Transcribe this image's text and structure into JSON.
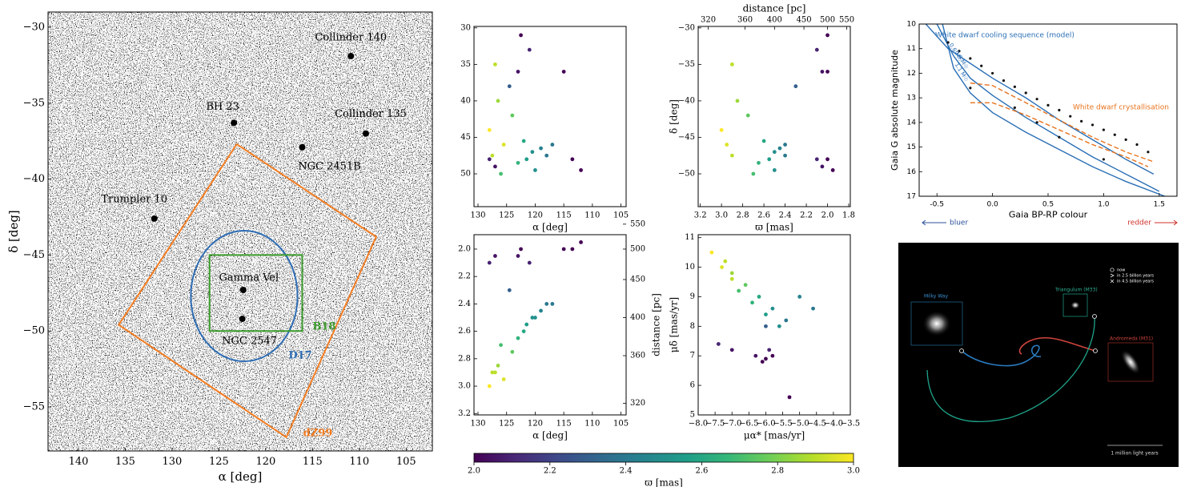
{
  "chart_data": [
    {
      "type": "sky-map",
      "xlabel": "α [deg]",
      "ylabel": "δ [deg]",
      "xlim": [
        143.25,
        102.2
      ],
      "ylim": [
        -57.9,
        -29
      ],
      "xticks": [
        140,
        135,
        130,
        125,
        120,
        115,
        110,
        105
      ],
      "yticks": [
        {
          "value": -30,
          "label": "−30"
        },
        {
          "value": -35,
          "label": "−35"
        },
        {
          "value": -40,
          "label": "−40"
        },
        {
          "value": -45,
          "label": "−45"
        },
        {
          "value": -50,
          "label": "−50"
        },
        {
          "value": -55,
          "label": "−55"
        }
      ],
      "labels": [
        "Collinder 140",
        "BH 23",
        "Collinder 135",
        "NGC 2451B",
        "Trumpler 10",
        "Gamma Vel",
        "NGC 2547"
      ],
      "x": [
        110.9,
        123.4,
        109.3,
        116.1,
        131.9,
        122.4,
        122.5
      ],
      "y": [
        -31.9,
        -36.3,
        -37.0,
        -37.9,
        -42.6,
        -47.3,
        -49.2
      ],
      "color": "#000000",
      "regions": [
        {
          "name": "dZ99",
          "color": "#f47c20",
          "x": [
            123.1,
            108.2,
            117.8,
            135.7
          ],
          "y": [
            -37.7,
            -43.8,
            -57.0,
            -49.6
          ]
        },
        {
          "name": "D17",
          "color": "#2e6db4",
          "center": [
            122.3,
            -47.7
          ],
          "radius": [
            5.7,
            4.3
          ]
        },
        {
          "name": "B18",
          "color": "#3a9a2a",
          "x": [
            126.0,
            116.1,
            116.1,
            126.0
          ],
          "y": [
            -45.0,
            -45.0,
            -50.0,
            -50.0
          ]
        }
      ]
    },
    {
      "type": "scatter",
      "xlabel": "α [deg]",
      "xlim": [
        130.7,
        104.1
      ],
      "ylim": [
        -54.5,
        -29.8
      ],
      "xticks": [
        130,
        125,
        120,
        115,
        110,
        105
      ],
      "yticks": [
        {
          "value": -30,
          "label": "30"
        },
        {
          "value": -35,
          "label": "35"
        },
        {
          "value": -40,
          "label": "40"
        },
        {
          "value": -45,
          "label": "45"
        },
        {
          "value": -50,
          "label": "50"
        }
      ],
      "x": [
        127,
        126.5,
        128,
        125.5,
        127.5,
        124,
        122,
        120.5,
        119,
        121.5,
        118,
        123,
        117,
        120,
        126,
        124.5,
        121,
        123,
        122.5,
        128,
        127,
        113.5,
        112,
        115
      ],
      "y": [
        -35,
        -40,
        -44,
        -46,
        -47.5,
        -42,
        -45.5,
        -47,
        -46.5,
        -48,
        -47.5,
        -48.5,
        -46,
        -49.5,
        -50,
        -38,
        -33,
        -36,
        -31,
        -48,
        -49,
        -48,
        -49.5,
        -36
      ],
      "c": [
        2.9,
        2.85,
        3,
        2.95,
        2.9,
        2.75,
        2.6,
        2.5,
        2.45,
        2.55,
        2.4,
        2.65,
        2.4,
        2.5,
        2.7,
        2.3,
        2.1,
        2.05,
        2,
        2.1,
        2.05,
        2,
        1.95,
        2
      ]
    },
    {
      "type": "scatter",
      "xlabel": "ϖ [mas]",
      "ylabel": "δ [deg]",
      "x2label": "distance [pc]",
      "xlim": [
        3.22,
        1.785
      ],
      "ylim": [
        -54.5,
        -29.8
      ],
      "xticks": [
        3.2,
        {
          "value": 3,
          "label": "3.0"
        },
        2.8,
        2.6,
        2.4,
        2.2,
        {
          "value": 2,
          "label": "2.0"
        },
        1.8
      ],
      "x2ticks": [
        320,
        360,
        400,
        450,
        500,
        550
      ],
      "yticks": [
        {
          "value": -30,
          "label": "−30"
        },
        {
          "value": -35,
          "label": "−35"
        },
        {
          "value": -40,
          "label": "−40"
        },
        {
          "value": -45,
          "label": "−45"
        },
        {
          "value": -50,
          "label": "−50"
        }
      ],
      "x": [
        2.9,
        2.85,
        3,
        2.95,
        2.9,
        2.75,
        2.6,
        2.5,
        2.45,
        2.55,
        2.4,
        2.65,
        2.4,
        2.5,
        2.7,
        2.3,
        2.1,
        2.05,
        2,
        2.1,
        2.05,
        2,
        1.95,
        2
      ],
      "y": [
        -35,
        -40,
        -44,
        -46,
        -47.5,
        -42,
        -45.5,
        -47,
        -46.5,
        -48,
        -47.5,
        -48.5,
        -46,
        -49.5,
        -50,
        -38,
        -33,
        -36,
        -31,
        -48,
        -49,
        -48,
        -49.5,
        -36
      ],
      "c": [
        2.9,
        2.85,
        3,
        2.95,
        2.9,
        2.75,
        2.6,
        2.5,
        2.45,
        2.55,
        2.4,
        2.65,
        2.4,
        2.5,
        2.7,
        2.3,
        2.1,
        2.05,
        2,
        2.1,
        2.05,
        2,
        1.95,
        2
      ]
    },
    {
      "type": "scatter",
      "xlabel": "α [deg]",
      "y2label": "distance [pc]",
      "xlim": [
        130.7,
        104.1
      ],
      "ylim": [
        3.21,
        1.895
      ],
      "xticks": [
        130,
        125,
        120,
        115,
        110,
        105
      ],
      "yticks": [
        {
          "value": 2,
          "label": "2.0"
        },
        2.2,
        2.4,
        2.6,
        2.8,
        {
          "value": 3,
          "label": "3.0"
        },
        3.2
      ],
      "y2ticks": [
        320,
        360,
        400,
        450,
        500,
        550
      ],
      "x": [
        127,
        126.5,
        128,
        125.5,
        127.5,
        124,
        122,
        120.5,
        119,
        121.5,
        118,
        123,
        117,
        120,
        126,
        124.5,
        121,
        123,
        122.5,
        128,
        127,
        113.5,
        112,
        115
      ],
      "y": [
        2.9,
        2.85,
        3,
        2.95,
        2.9,
        2.75,
        2.6,
        2.5,
        2.45,
        2.55,
        2.4,
        2.65,
        2.4,
        2.5,
        2.7,
        2.3,
        2.1,
        2.05,
        2,
        2.1,
        2.05,
        2,
        1.95,
        2
      ],
      "c": [
        2.9,
        2.85,
        3,
        2.95,
        2.9,
        2.75,
        2.6,
        2.5,
        2.45,
        2.55,
        2.4,
        2.65,
        2.4,
        2.5,
        2.7,
        2.3,
        2.1,
        2.05,
        2,
        2.1,
        2.05,
        2,
        1.95,
        2
      ]
    },
    {
      "type": "scatter",
      "xlabel": "μα* [mas/yr]",
      "ylabel": "μδ [mas/yr]",
      "xlim": [
        -8,
        -3.5
      ],
      "ylim": [
        5,
        11.1
      ],
      "xticks": [
        {
          "value": -8,
          "label": "−8.0"
        },
        {
          "value": -7.5,
          "label": "−7.5"
        },
        {
          "value": -7,
          "label": "−7.0"
        },
        {
          "value": -6.5,
          "label": "−6.5"
        },
        {
          "value": -6,
          "label": "−6.0"
        },
        {
          "value": -5.5,
          "label": "−5.5"
        },
        {
          "value": -5,
          "label": "−5.0"
        },
        {
          "value": -4.5,
          "label": "−4.5"
        },
        {
          "value": -4,
          "label": "−4.0"
        },
        {
          "value": -3.5,
          "label": "−3.5"
        }
      ],
      "yticks": [
        5,
        6,
        7,
        8,
        9,
        10,
        11
      ],
      "x": [
        -7.2,
        -7,
        -7.6,
        -7.3,
        -7,
        -6.6,
        -6.2,
        -5.8,
        -5,
        -6,
        -5.4,
        -6.4,
        -4.6,
        -5.6,
        -6.8,
        -6,
        -5.9,
        -6.3,
        -6.1,
        -7.4,
        -7,
        -6,
        -5.8,
        -5.3
      ],
      "y": [
        10.2,
        9.8,
        10.5,
        10,
        9.6,
        9.4,
        9,
        8.6,
        9,
        8.4,
        8.2,
        8.8,
        8.6,
        8,
        9.2,
        8,
        7.2,
        7,
        6.8,
        7.4,
        7.2,
        6.9,
        7,
        5.6
      ],
      "c": [
        2.9,
        2.85,
        3,
        2.95,
        2.9,
        2.75,
        2.6,
        2.5,
        2.45,
        2.55,
        2.4,
        2.65,
        2.4,
        2.5,
        2.7,
        2.3,
        2.1,
        2.05,
        2,
        2.1,
        2.05,
        2,
        1.95,
        2
      ]
    },
    {
      "type": "colorbar",
      "xlabel": "ϖ [mas]",
      "colormap": "viridis",
      "xlim": [
        2,
        3
      ],
      "xticks": [
        {
          "value": 2,
          "label": "2.0"
        },
        2.2,
        2.4,
        2.6,
        2.8,
        {
          "value": 3,
          "label": "3.0"
        }
      ]
    },
    {
      "type": "scatter",
      "xlabel": "Gaia BP-RP colour",
      "ylabel": "Gaia G absolute magnitude",
      "xlim": [
        -0.66,
        1.66
      ],
      "ylim": [
        17,
        10
      ],
      "xticks": [
        -0.5,
        {
          "value": 0,
          "label": "0.0"
        },
        0.5,
        {
          "value": 1,
          "label": "1.0"
        },
        1.5
      ],
      "yticks": [
        10,
        11,
        12,
        13,
        14,
        15,
        16,
        17
      ],
      "x": [
        -0.4,
        -0.3,
        -0.2,
        -0.1,
        0,
        0.1,
        0.2,
        0.3,
        0.4,
        0.5,
        0.6,
        0.7,
        0.8,
        0.9,
        1.0,
        1.1,
        1.2,
        1.3,
        1.4,
        0.2,
        0.6,
        1.0,
        -0.2,
        0.4
      ],
      "y": [
        10.75,
        11.1,
        11.4,
        11.7,
        12.0,
        12.3,
        12.55,
        12.8,
        13.05,
        13.3,
        13.5,
        13.75,
        13.95,
        14.1,
        14.3,
        14.5,
        14.7,
        14.9,
        15.2,
        13.4,
        14.6,
        15.5,
        12.6,
        14.0
      ],
      "color": "#111111",
      "lines": [
        {
          "name": "0.6 M☉",
          "color": "#2a6fb5",
          "x": [
            -0.6,
            -0.4,
            -0.2,
            0,
            0.3,
            0.6,
            0.9,
            1.2,
            1.45
          ],
          "y": [
            10,
            11,
            11.6,
            12.2,
            13.0,
            13.9,
            14.7,
            15.5,
            16.1
          ]
        },
        {
          "name": "0.9 M☉",
          "color": "#2a6fb5",
          "x": [
            -0.5,
            -0.35,
            -0.2,
            0,
            0.3,
            0.6,
            0.9,
            1.2,
            1.5
          ],
          "y": [
            10,
            11.3,
            12.2,
            12.9,
            13.8,
            14.6,
            15.4,
            16.1,
            16.8
          ]
        },
        {
          "name": "1.1 M☉",
          "color": "#2a6fb5",
          "x": [
            -0.45,
            -0.35,
            -0.2,
            0,
            0.3,
            0.6,
            0.9,
            1.2,
            1.55
          ],
          "y": [
            10,
            11.8,
            12.8,
            13.6,
            14.4,
            15.1,
            15.8,
            16.4,
            17
          ]
        },
        {
          "color": "#e8721c",
          "dash": true,
          "x": [
            -0.2,
            0,
            0.3,
            0.6,
            0.9,
            1.2,
            1.45
          ],
          "y": [
            12.4,
            12.5,
            13.2,
            13.9,
            14.6,
            15.2,
            15.6
          ]
        },
        {
          "color": "#e8721c",
          "dash": true,
          "x": [
            -0.2,
            0,
            0.3,
            0.6,
            0.9,
            1.2,
            1.4
          ],
          "y": [
            13.2,
            13.2,
            13.7,
            14.3,
            14.9,
            15.4,
            15.8
          ]
        }
      ],
      "annotations": [
        {
          "text": "White dwarf cooling sequence (model)",
          "color": "#2a6fb5"
        },
        {
          "text": "White dwarf crystallisation",
          "color": "#e8721c"
        },
        {
          "text": "bluer",
          "color": "#2a4f9a"
        },
        {
          "text": "redder",
          "color": "#d0302a"
        }
      ]
    }
  ],
  "image": {
    "labels": [
      "Milky Way",
      "Triangulum (M33)",
      "Andromeda (M31)"
    ],
    "legend": [
      "now",
      "in 2.5 billion years",
      "in 4.5 billion years"
    ],
    "scale": "1 million light years"
  }
}
